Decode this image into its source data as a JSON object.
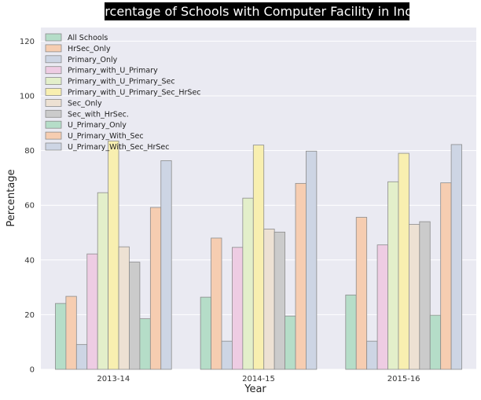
{
  "chart_data": {
    "type": "bar",
    "title": "Percentage of Schools with Computer Facility in India",
    "xlabel": "Year",
    "ylabel": "Percentage",
    "ylim": [
      0,
      125
    ],
    "yticks": [
      0,
      20,
      40,
      60,
      80,
      100,
      120
    ],
    "grid": true,
    "legend_position": "top-left",
    "categories": [
      "2013-14",
      "2014-15",
      "2015-16"
    ],
    "series": [
      {
        "name": "All Schools",
        "color": "#b5ddc8",
        "values": [
          24.1,
          26.4,
          27.2
        ]
      },
      {
        "name": "HrSec_Only",
        "color": "#f6cdb1",
        "values": [
          26.7,
          48.0,
          55.6
        ]
      },
      {
        "name": "Primary_Only",
        "color": "#cdd5e4",
        "values": [
          9.1,
          10.3,
          10.3
        ]
      },
      {
        "name": "Primary_with_U_Primary",
        "color": "#eecce3",
        "values": [
          42.2,
          44.6,
          45.5
        ]
      },
      {
        "name": "Primary_with_U_Primary_Sec",
        "color": "#e3efca",
        "values": [
          64.6,
          62.6,
          68.6
        ]
      },
      {
        "name": "Primary_with_U_Primary_Sec_HrSec",
        "color": "#f8efb0",
        "values": [
          83.5,
          82.0,
          79.0
        ]
      },
      {
        "name": "Sec_Only",
        "color": "#ede1d3",
        "values": [
          44.8,
          51.3,
          53.0
        ]
      },
      {
        "name": "Sec_with_HrSec.",
        "color": "#cbcbcb",
        "values": [
          39.2,
          50.2,
          54.0
        ]
      },
      {
        "name": "U_Primary_Only",
        "color": "#b5ddc8",
        "values": [
          18.5,
          19.5,
          19.8
        ]
      },
      {
        "name": "U_Primary_With_Sec",
        "color": "#f6cdb1",
        "values": [
          59.2,
          68.0,
          68.2
        ]
      },
      {
        "name": "U_Primary_With_Sec_HrSec",
        "color": "#cdd5e4",
        "values": [
          76.3,
          79.8,
          82.2
        ]
      }
    ]
  }
}
